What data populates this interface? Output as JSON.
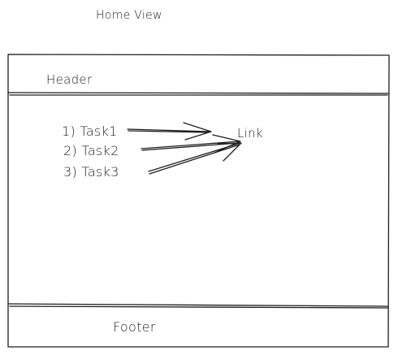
{
  "view_title": "Home View",
  "header": {
    "label": "Header"
  },
  "tasks": [
    {
      "label": "1) Task1"
    },
    {
      "label": "2) Task2"
    },
    {
      "label": "3) Task3"
    }
  ],
  "link": {
    "label": "Link"
  },
  "footer": {
    "label": "Footer"
  },
  "colors": {
    "stroke": "#1e1e1e",
    "background": "#ffffff"
  }
}
